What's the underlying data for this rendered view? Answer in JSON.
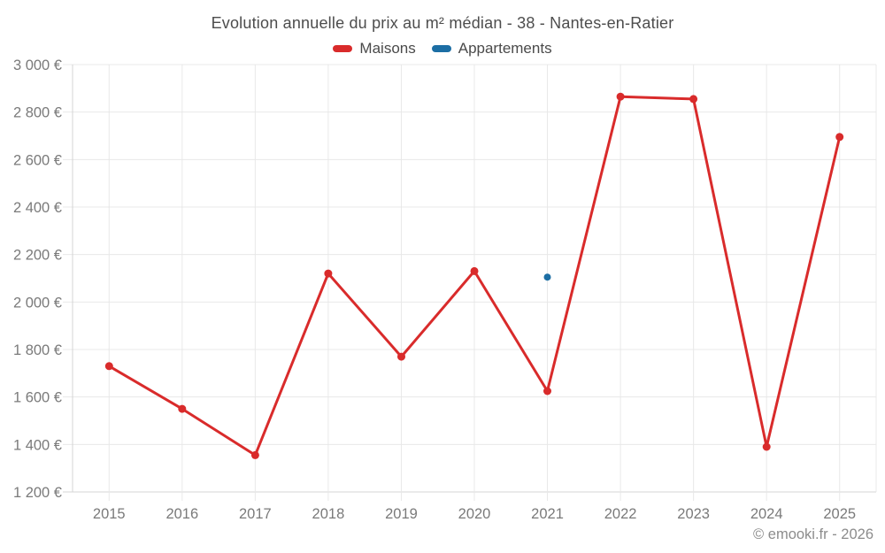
{
  "chart_data": {
    "type": "line",
    "title": "Evolution annuelle du prix au m² médian - 38 - Nantes-en-Ratier",
    "categories": [
      "2015",
      "2016",
      "2017",
      "2018",
      "2019",
      "2020",
      "2021",
      "2022",
      "2023",
      "2024",
      "2025"
    ],
    "series": [
      {
        "name": "Maisons",
        "color": "#d92b2b",
        "marker_radius": 4.5,
        "values": [
          1730,
          1550,
          1355,
          2120,
          1770,
          2130,
          1625,
          2865,
          2855,
          1390,
          2695
        ]
      },
      {
        "name": "Appartements",
        "color": "#1c6ea4",
        "marker_radius": 4,
        "values": [
          null,
          null,
          null,
          null,
          null,
          null,
          2105,
          null,
          null,
          null,
          null
        ]
      }
    ],
    "ylabel": "",
    "xlabel": "",
    "ylim": [
      1200,
      3000
    ],
    "ytick_step": 200,
    "ytick_suffix": " €",
    "grid": true,
    "legend_position": "top"
  },
  "style": {
    "grid_color": "#e8e8e8",
    "axis_color": "#d4d4d4",
    "title_color": "#4d4d4d",
    "tick_label_color": "#7a7a7a"
  },
  "footer": {
    "credit": "© emooki.fr - 2026"
  }
}
